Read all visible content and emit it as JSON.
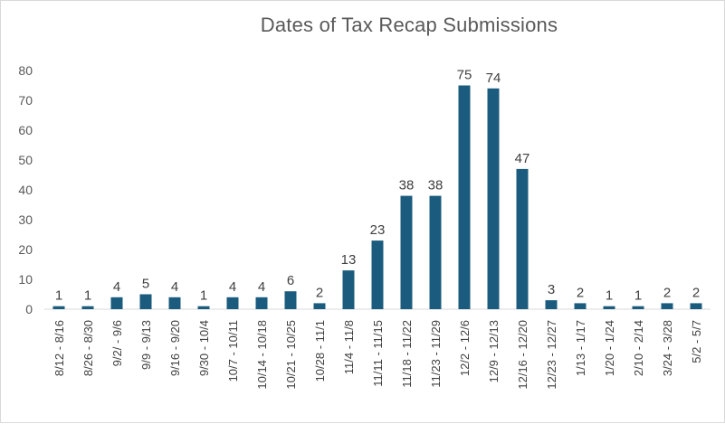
{
  "chart_data": {
    "type": "bar",
    "title": "Dates of Tax Recap Submissions",
    "xlabel": "",
    "ylabel": "",
    "ylim": [
      0,
      80
    ],
    "yticks": [
      0,
      10,
      20,
      30,
      40,
      50,
      60,
      70,
      80
    ],
    "grid": false,
    "legend": "none",
    "bar_color": "#1b5c7e",
    "categories": [
      "8/12 - 8/16",
      "8/26 - 8/30",
      "9/2/ - 9/6",
      "9/9 - 9/13",
      "9/16 - 9/20",
      "9/30 - 10/4",
      "10/7 - 10/11",
      "10/14 - 10/18",
      "10/21 - 10/25",
      "10/28 - 11/1",
      "11/4 - 11/8",
      "11/11 - 11/15",
      "11/18 - 11/22",
      "11/23 - 11/29",
      "12/2 - 12/6",
      "12/9 - 12/13",
      "12/16 - 12/20",
      "12/23 - 12/27",
      "1/13 - 1/17",
      "1/20 - 1/24",
      "2/10 - 2/14",
      "3/24 - 3/28",
      "5/2 - 5/7"
    ],
    "values": [
      1,
      1,
      4,
      5,
      4,
      1,
      4,
      4,
      6,
      2,
      13,
      23,
      38,
      38,
      75,
      74,
      47,
      3,
      2,
      1,
      1,
      2,
      2
    ]
  }
}
